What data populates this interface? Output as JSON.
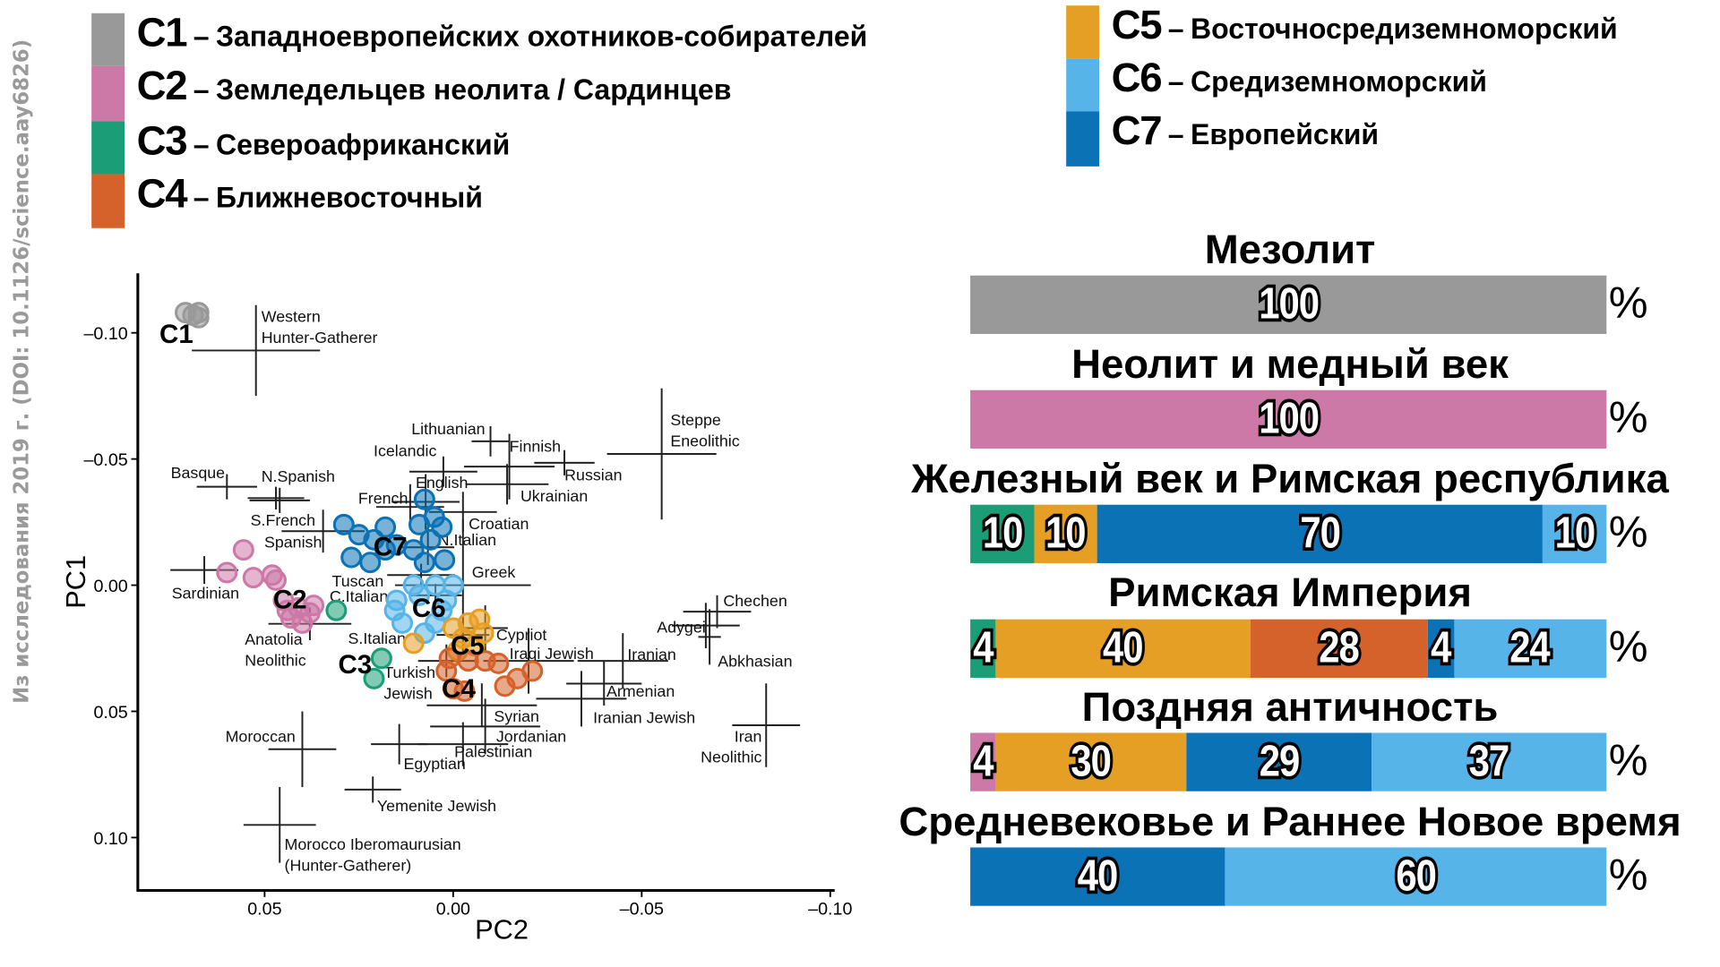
{
  "watermark": "Из исследования 2019 г. (DOI: 10.1126/science.aay6826)",
  "legend": {
    "dash": "–",
    "items": [
      {
        "code": "C1",
        "label": "Западноевропейских охотников-собирателей",
        "color": "#999999"
      },
      {
        "code": "C2",
        "label": "Земледельцев неолита / Сардинцев",
        "color": "#CC79A7"
      },
      {
        "code": "C3",
        "label": "Североафриканский",
        "color": "#1B9E77"
      },
      {
        "code": "C4",
        "label": "Ближневосточный",
        "color": "#D5622A"
      },
      {
        "code": "C5",
        "label": "Восточносредиземноморский",
        "color": "#E69F25"
      },
      {
        "code": "C6",
        "label": "Средиземноморский",
        "color": "#56B4E9"
      },
      {
        "code": "C7",
        "label": "Европейский",
        "color": "#0A72B5"
      }
    ]
  },
  "chart_data": [
    {
      "type": "scatter",
      "xlabel": "PC2",
      "ylabel": "PC1",
      "xlim": [
        0.075,
        -0.105
      ],
      "ylim": [
        -0.125,
        0.12
      ],
      "x_reversed": true,
      "y_reversed": true,
      "x_ticks": [
        {
          "v": 0.05,
          "label": "0.05"
        },
        {
          "v": 0.0,
          "label": "0.00"
        },
        {
          "v": -0.05,
          "label": "–0.05"
        },
        {
          "v": -0.1,
          "label": "–0.10"
        }
      ],
      "y_ticks": [
        {
          "v": -0.1,
          "label": "–0.10"
        },
        {
          "v": -0.05,
          "label": "–0.05"
        },
        {
          "v": 0.0,
          "label": "0.00"
        },
        {
          "v": 0.05,
          "label": "0.05"
        },
        {
          "v": 0.1,
          "label": "0.10"
        }
      ],
      "grid": false,
      "clusters": [
        {
          "name": "C1",
          "color": "#999999",
          "points": [
            [
              0.071,
              -0.108
            ],
            [
              0.0675,
              -0.108
            ],
            [
              0.0675,
              -0.106
            ],
            [
              0.069,
              -0.107
            ]
          ]
        },
        {
          "name": "C2",
          "color": "#CC79A7",
          "points": [
            [
              0.0556,
              -0.014
            ],
            [
              0.06,
              -0.005
            ],
            [
              0.053,
              -0.003
            ],
            [
              0.048,
              -0.004
            ],
            [
              0.047,
              -0.002
            ],
            [
              0.045,
              0.006
            ],
            [
              0.041,
              0.009
            ],
            [
              0.038,
              0.011
            ],
            [
              0.043,
              0.013
            ],
            [
              0.04,
              0.015
            ],
            [
              0.037,
              0.008
            ],
            [
              0.044,
              0.01
            ]
          ]
        },
        {
          "name": "C3",
          "color": "#1B9E77",
          "points": [
            [
              0.031,
              0.01
            ],
            [
              0.019,
              0.029
            ],
            [
              0.021,
              0.037
            ]
          ]
        },
        {
          "name": "C7",
          "color": "#0A72B5",
          "points": [
            [
              0.029,
              -0.024
            ],
            [
              0.025,
              -0.02
            ],
            [
              0.021,
              -0.018
            ],
            [
              0.018,
              -0.023
            ],
            [
              0.027,
              -0.011
            ],
            [
              0.022,
              -0.009
            ],
            [
              0.018,
              -0.014
            ],
            [
              0.015,
              -0.016
            ],
            [
              0.0076,
              -0.034
            ],
            [
              0.009,
              -0.024
            ],
            [
              0.005,
              -0.027
            ],
            [
              0.003,
              -0.023
            ],
            [
              0.0105,
              -0.014
            ],
            [
              0.0076,
              -0.009
            ],
            [
              0.0023,
              -0.01
            ],
            [
              0.006,
              -0.018
            ]
          ]
        },
        {
          "name": "C6",
          "color": "#56B4E9",
          "points": [
            [
              0.0105,
              0.0
            ],
            [
              0.015,
              0.006
            ],
            [
              0.0155,
              0.01
            ],
            [
              0.0135,
              0.015
            ],
            [
              0.009,
              0.004
            ],
            [
              0.0047,
              0.0
            ],
            [
              0.0,
              0.0
            ],
            [
              0.003,
              0.01
            ],
            [
              0.0076,
              0.019
            ],
            [
              0.0018,
              0.006
            ],
            [
              0.0047,
              0.015
            ]
          ]
        },
        {
          "name": "C5",
          "color": "#E69F25",
          "points": [
            [
              0.0105,
              0.023
            ],
            [
              0.0,
              0.017
            ],
            [
              -0.004,
              0.015
            ],
            [
              -0.007,
              0.0135
            ],
            [
              -0.0026,
              0.021
            ],
            [
              -0.008,
              0.019
            ],
            [
              -0.0056,
              0.024
            ],
            [
              -0.0012,
              0.026
            ]
          ]
        },
        {
          "name": "C4",
          "color": "#D5622A",
          "points": [
            [
              0.001,
              0.029
            ],
            [
              0.0018,
              0.034
            ],
            [
              -0.004,
              0.03
            ],
            [
              -0.0085,
              0.03
            ],
            [
              -0.012,
              0.031
            ],
            [
              -0.017,
              0.037
            ],
            [
              -0.021,
              0.034
            ],
            [
              -0.0137,
              0.04
            ],
            [
              0.0,
              0.041
            ],
            [
              -0.003,
              0.042
            ]
          ]
        }
      ],
      "reference_populations": [
        {
          "label": [
            "Western",
            "Hunter-Gatherer"
          ],
          "pc2": 0.0523,
          "pc1": -0.093,
          "err2": 0.017,
          "err1": 0.018
        },
        {
          "label": [
            "Lithuanian"
          ],
          "pc2": -0.0099,
          "pc1": -0.057,
          "err2": 0.005,
          "err1": 0.006
        },
        {
          "label": [
            "Finnish"
          ],
          "pc2": -0.0149,
          "pc1": -0.047,
          "err2": 0.012,
          "err1": 0.013
        },
        {
          "label": [
            "Icelandic"
          ],
          "pc2": 0.0026,
          "pc1": -0.045,
          "err2": 0.009,
          "err1": 0.006
        },
        {
          "label": [
            "Russian"
          ],
          "pc2": -0.0295,
          "pc1": -0.0485,
          "err2": 0.008,
          "err1": 0.005
        },
        {
          "label": [
            "Ukrainian"
          ],
          "pc2": -0.0143,
          "pc1": -0.04,
          "err2": 0.011,
          "err1": 0.008
        },
        {
          "label": [
            "Steppe",
            "Eneolithic"
          ],
          "pc2": -0.0553,
          "pc1": -0.052,
          "err2": 0.0145,
          "err1": 0.026
        },
        {
          "label": [
            "Basque"
          ],
          "pc2": 0.06,
          "pc1": -0.039,
          "err2": 0.008,
          "err1": 0.005
        },
        {
          "label": [
            "N.Spanish"
          ],
          "pc2": 0.047,
          "pc1": -0.0345,
          "err2": 0.0075,
          "err1": 0.0045
        },
        {
          "label": [
            "English"
          ],
          "pc2": 0.0073,
          "pc1": -0.033,
          "err2": 0.009,
          "err1": 0.011
        },
        {
          "label": [
            "French"
          ],
          "pc2": 0.0114,
          "pc1": -0.031,
          "err2": 0.009,
          "err1": 0.009
        },
        {
          "label": [
            "Croatian"
          ],
          "pc2": -0.0026,
          "pc1": -0.029,
          "err2": 0.009,
          "err1": 0.008
        },
        {
          "label": [
            "S.French"
          ],
          "pc2": 0.046,
          "pc1": -0.0336,
          "err2": 0.008,
          "err1": 0.005
        },
        {
          "label": [
            "Spanish"
          ],
          "pc2": 0.0345,
          "pc1": -0.0214,
          "err2": 0.011,
          "err1": 0.0085
        },
        {
          "label": [
            "Sardinian"
          ],
          "pc2": 0.066,
          "pc1": -0.006,
          "err2": 0.009,
          "err1": 0.0055
        },
        {
          "label": [
            "N.Italian"
          ],
          "pc2": 0.0067,
          "pc1": -0.015,
          "err2": 0.007,
          "err1": 0.007
        },
        {
          "label": [
            "Tuscan"
          ],
          "pc2": 0.0085,
          "pc1": -0.004,
          "err2": 0.009,
          "err1": 0.0045
        },
        {
          "label": [
            "Greek"
          ],
          "pc2": -0.0026,
          "pc1": 0.0,
          "err2": 0.018,
          "err1": 0.026
        },
        {
          "label": [
            "C.Italian"
          ],
          "pc2": 0.0047,
          "pc1": 0.004,
          "err2": 0.007,
          "err1": 0.0045
        },
        {
          "label": [
            "Anatolia",
            "Neolithic"
          ],
          "pc2": 0.038,
          "pc1": 0.0153,
          "err2": 0.011,
          "err1": 0.0065
        },
        {
          "label": [
            "S.Italian"
          ],
          "pc2": -0.0026,
          "pc1": 0.0197,
          "err2": 0.007,
          "err1": 0.0065
        },
        {
          "label": [
            "Cypriot"
          ],
          "pc2": -0.0085,
          "pc1": 0.017,
          "err2": 0.006,
          "err1": 0.009
        },
        {
          "label": [
            "Turkish",
            "Jewish"
          ],
          "pc2": 0.0018,
          "pc1": 0.03,
          "err2": 0.0075,
          "err1": 0.0065
        },
        {
          "label": [
            "Iraqi Jewish"
          ],
          "pc2": -0.02,
          "pc1": 0.03,
          "err2": 0.012,
          "err1": 0.013
        },
        {
          "label": [
            "Iranian"
          ],
          "pc2": -0.045,
          "pc1": 0.03,
          "err2": 0.012,
          "err1": 0.011
        },
        {
          "label": [
            "Adygei"
          ],
          "pc2": -0.067,
          "pc1": 0.016,
          "err2": 0.009,
          "err1": 0.009
        },
        {
          "label": [
            "Chechen"
          ],
          "pc2": -0.07,
          "pc1": 0.0105,
          "err2": 0.009,
          "err1": 0.0065
        },
        {
          "label": [
            "Abkhasian"
          ],
          "pc2": -0.068,
          "pc1": 0.0205,
          "err2": 0.003,
          "err1": 0.011
        },
        {
          "label": [
            "Armenian"
          ],
          "pc2": -0.04,
          "pc1": 0.039,
          "err2": 0.01,
          "err1": 0.0087
        },
        {
          "label": [
            "Syrian"
          ],
          "pc2": -0.0076,
          "pc1": 0.0476,
          "err2": 0.0146,
          "err1": 0.0087
        },
        {
          "label": [
            "Iranian Jewish"
          ],
          "pc2": -0.034,
          "pc1": 0.045,
          "err2": 0.012,
          "err1": 0.011
        },
        {
          "label": [
            "Jordanian"
          ],
          "pc2": -0.0085,
          "pc1": 0.056,
          "err2": 0.0146,
          "err1": 0.011
        },
        {
          "label": [
            "Palestinian"
          ],
          "pc2": -0.0026,
          "pc1": 0.063,
          "err2": 0.012,
          "err1": 0.0087
        },
        {
          "label": [
            "Egyptian"
          ],
          "pc2": 0.0143,
          "pc1": 0.063,
          "err2": 0.0075,
          "err1": 0.008
        },
        {
          "label": [
            "Moroccan"
          ],
          "pc2": 0.04,
          "pc1": 0.065,
          "err2": 0.009,
          "err1": 0.015
        },
        {
          "label": [
            "Iran",
            "Neolithic"
          ],
          "pc2": -0.083,
          "pc1": 0.0555,
          "err2": 0.009,
          "err1": 0.0166
        },
        {
          "label": [
            "Yemenite Jewish"
          ],
          "pc2": 0.0213,
          "pc1": 0.081,
          "err2": 0.0075,
          "err1": 0.0052
        },
        {
          "label": [
            "Morocco Iberomaurusian",
            "(Hunter-Gatherer)"
          ],
          "pc2": 0.046,
          "pc1": 0.095,
          "err2": 0.0096,
          "err1": 0.015
        }
      ]
    },
    {
      "type": "bar",
      "stacked": true,
      "orientation": "horizontal",
      "unit": "%",
      "periods": [
        {
          "title": "Мезолит",
          "segments": [
            {
              "cluster": "C1",
              "value": 100,
              "color": "#999999"
            }
          ]
        },
        {
          "title": "Неолит и медный век",
          "segments": [
            {
              "cluster": "C2",
              "value": 100,
              "color": "#CC79A7"
            }
          ]
        },
        {
          "title": "Железный век и Римская республика",
          "segments": [
            {
              "cluster": "C3",
              "value": 10,
              "color": "#1B9E77"
            },
            {
              "cluster": "C5",
              "value": 10,
              "color": "#E69F25"
            },
            {
              "cluster": "C7",
              "value": 70,
              "color": "#0A72B5"
            },
            {
              "cluster": "C6",
              "value": 10,
              "color": "#56B4E9"
            }
          ]
        },
        {
          "title": "Римская Империя",
          "segments": [
            {
              "cluster": "C3",
              "value": 4,
              "color": "#1B9E77"
            },
            {
              "cluster": "C5",
              "value": 40,
              "color": "#E69F25"
            },
            {
              "cluster": "C4",
              "value": 28,
              "color": "#D5622A"
            },
            {
              "cluster": "C7",
              "value": 4,
              "color": "#0A72B5"
            },
            {
              "cluster": "C6",
              "value": 24,
              "color": "#56B4E9"
            }
          ]
        },
        {
          "title": "Поздняя античность",
          "segments": [
            {
              "cluster": "C2",
              "value": 4,
              "color": "#CC79A7"
            },
            {
              "cluster": "C5",
              "value": 30,
              "color": "#E69F25"
            },
            {
              "cluster": "C7",
              "value": 29,
              "color": "#0A72B5"
            },
            {
              "cluster": "C6",
              "value": 37,
              "color": "#56B4E9"
            }
          ]
        },
        {
          "title": "Средневековье и Раннее Новое время",
          "segments": [
            {
              "cluster": "C7",
              "value": 40,
              "color": "#0A72B5"
            },
            {
              "cluster": "C6",
              "value": 60,
              "color": "#56B4E9"
            }
          ]
        }
      ]
    }
  ]
}
